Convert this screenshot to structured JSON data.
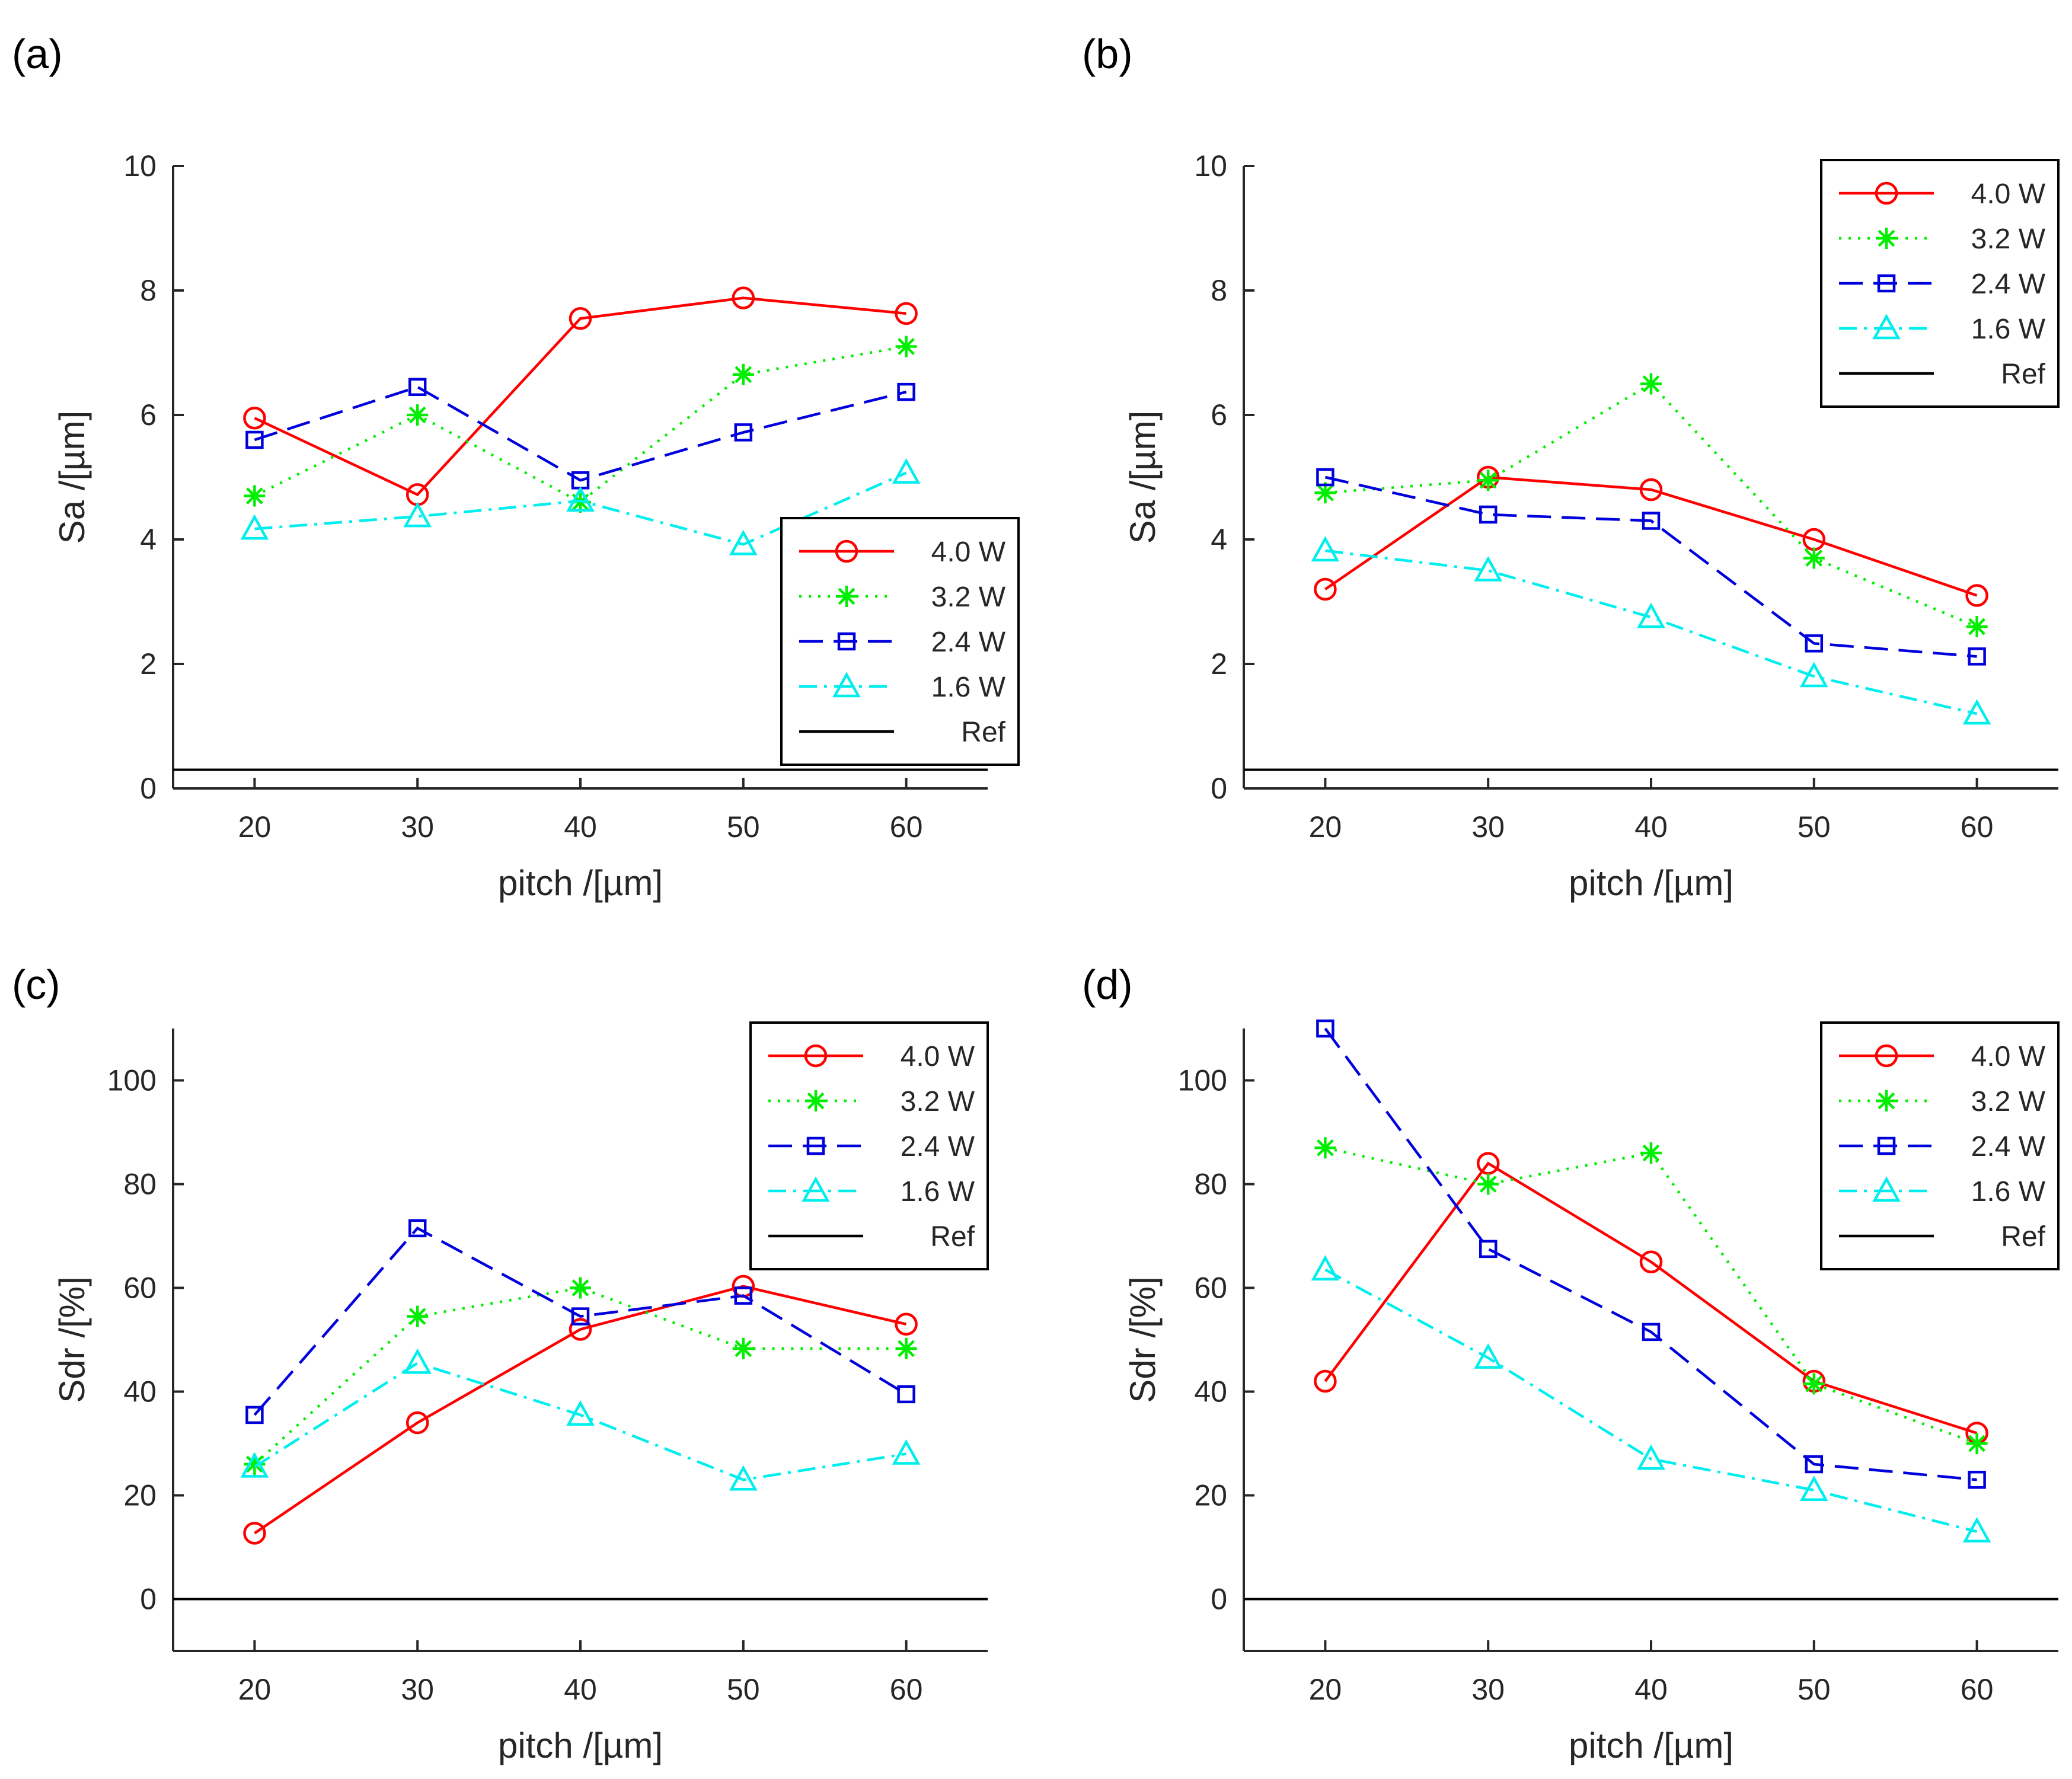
{
  "figure": {
    "series_styles": [
      {
        "name": "4.0 W",
        "color": "#ff0000",
        "dash": "",
        "marker": "circle"
      },
      {
        "name": "3.2 W",
        "color": "#00ee00",
        "dash": "4 12",
        "marker": "asterisk"
      },
      {
        "name": "2.4 W",
        "color": "#0000dd",
        "dash": "40 18",
        "marker": "square"
      },
      {
        "name": "1.6 W",
        "color": "#00eeee",
        "dash": "30 12 5 12",
        "marker": "triangle"
      },
      {
        "name": "Ref",
        "color": "#000000",
        "dash": "",
        "marker": "none"
      }
    ]
  },
  "chart_data": [
    {
      "panel": "(a)",
      "type": "line",
      "x": [
        20,
        30,
        40,
        50,
        60
      ],
      "xlabel": "pitch /[µm]",
      "ylabel": "Sa /[µm]",
      "xlim": [
        15,
        65
      ],
      "ylim": [
        0,
        10
      ],
      "xticks": [
        20,
        30,
        40,
        50,
        60
      ],
      "yticks": [
        0,
        2,
        4,
        6,
        8,
        10
      ],
      "legend_position": "bottom-right",
      "ref": 0.3,
      "series": [
        {
          "name": "4.0 W",
          "values": [
            5.95,
            4.72,
            7.55,
            7.88,
            7.63
          ]
        },
        {
          "name": "3.2 W",
          "values": [
            4.7,
            6.0,
            4.6,
            6.65,
            7.1
          ]
        },
        {
          "name": "2.4 W",
          "values": [
            5.6,
            6.45,
            4.95,
            5.72,
            6.37
          ]
        },
        {
          "name": "1.6 W",
          "values": [
            4.17,
            4.37,
            4.62,
            3.92,
            5.07
          ]
        }
      ]
    },
    {
      "panel": "(b)",
      "type": "line",
      "x": [
        20,
        30,
        40,
        50,
        60
      ],
      "xlabel": "pitch /[µm]",
      "ylabel": "Sa /[µm]",
      "xlim": [
        15,
        65
      ],
      "ylim": [
        0,
        10
      ],
      "xticks": [
        20,
        30,
        40,
        50,
        60
      ],
      "yticks": [
        0,
        2,
        4,
        6,
        8,
        10
      ],
      "legend_position": "top-right",
      "ref": 0.3,
      "series": [
        {
          "name": "4.0 W",
          "values": [
            3.2,
            5.0,
            4.8,
            4.0,
            3.1
          ]
        },
        {
          "name": "3.2 W",
          "values": [
            4.75,
            4.95,
            6.5,
            3.7,
            2.6
          ]
        },
        {
          "name": "2.4 W",
          "values": [
            5.0,
            4.4,
            4.3,
            2.33,
            2.12
          ]
        },
        {
          "name": "1.6 W",
          "values": [
            3.82,
            3.5,
            2.75,
            1.8,
            1.2
          ]
        }
      ]
    },
    {
      "panel": "(c)",
      "type": "line",
      "x": [
        20,
        30,
        40,
        50,
        60
      ],
      "xlabel": "pitch /[µm]",
      "ylabel": "Sdr /[%]",
      "xlim": [
        15,
        65
      ],
      "ylim": [
        -10,
        110
      ],
      "xticks": [
        20,
        30,
        40,
        50,
        60
      ],
      "yticks": [
        0,
        20,
        40,
        60,
        80,
        100
      ],
      "legend_position": "top-right",
      "ref": 0,
      "series": [
        {
          "name": "4.0 W",
          "values": [
            12.7,
            34.0,
            52.0,
            60.3,
            53.0
          ]
        },
        {
          "name": "3.2 W",
          "values": [
            26.0,
            54.5,
            60.0,
            48.3,
            48.3
          ]
        },
        {
          "name": "2.4 W",
          "values": [
            35.5,
            71.5,
            54.5,
            58.5,
            39.5
          ]
        },
        {
          "name": "1.6 W",
          "values": [
            25.5,
            45.5,
            35.5,
            23.0,
            28.0
          ]
        }
      ]
    },
    {
      "panel": "(d)",
      "type": "line",
      "x": [
        20,
        30,
        40,
        50,
        60
      ],
      "xlabel": "pitch /[µm]",
      "ylabel": "Sdr /[%]",
      "xlim": [
        15,
        65
      ],
      "ylim": [
        -10,
        110
      ],
      "xticks": [
        20,
        30,
        40,
        50,
        60
      ],
      "yticks": [
        0,
        20,
        40,
        60,
        80,
        100
      ],
      "legend_position": "top-right",
      "ref": 0,
      "series": [
        {
          "name": "4.0 W",
          "values": [
            42.0,
            84.0,
            65.0,
            42.0,
            32.0
          ]
        },
        {
          "name": "3.2 W",
          "values": [
            87.0,
            80.0,
            86.0,
            41.5,
            30.0
          ]
        },
        {
          "name": "2.4 W",
          "values": [
            110.0,
            67.5,
            51.5,
            26.0,
            23.0
          ]
        },
        {
          "name": "1.6 W",
          "values": [
            63.5,
            46.5,
            27.0,
            21.0,
            13.0
          ]
        }
      ]
    }
  ]
}
